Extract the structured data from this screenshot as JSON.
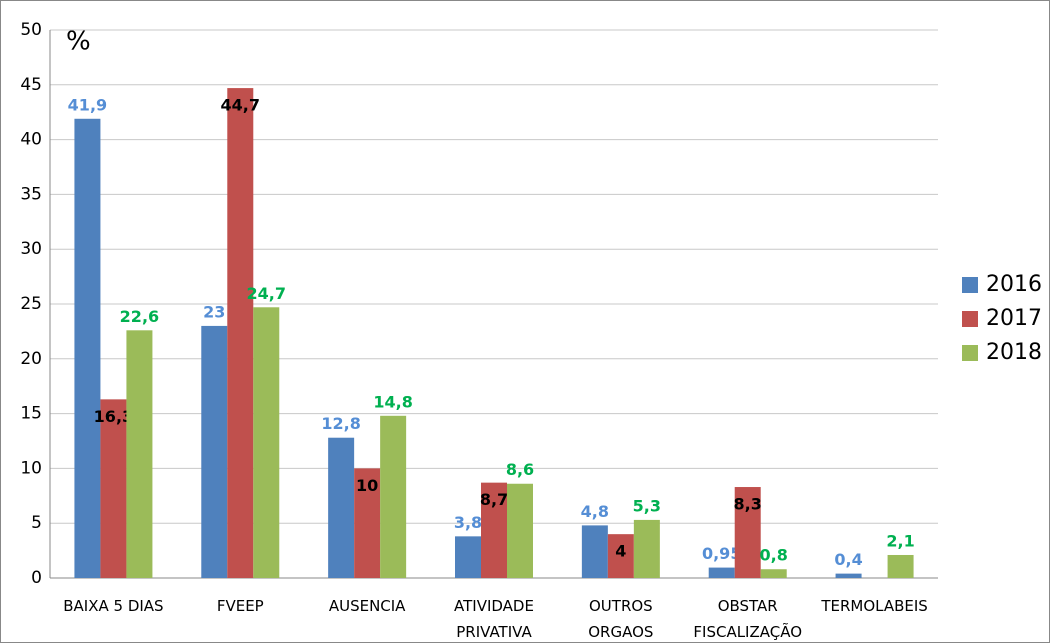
{
  "chart_data": {
    "type": "bar",
    "y_label": "%",
    "categories": [
      "BAIXA 5 DIAS",
      "FVEEP",
      "AUSENCIA",
      "ATIVIDADE PRIVATIVA",
      "OUTROS ORGAOS",
      "OBSTAR FISCALIZAÇÃO",
      "TERMOLABEIS"
    ],
    "series": [
      {
        "name": "2016",
        "color": "#4f81bd",
        "label_color": "#558ed5",
        "values": [
          41.9,
          23,
          12.8,
          3.8,
          4.8,
          0.95,
          0.4
        ],
        "value_labels": [
          "41,9",
          "23",
          "12,8",
          "3,8",
          "4,8",
          "0,95",
          "0,4"
        ]
      },
      {
        "name": "2017",
        "color": "#c0504d",
        "label_color": "#000000",
        "values": [
          16.3,
          44.7,
          10,
          8.7,
          4,
          8.3,
          null
        ],
        "value_labels": [
          "16,3",
          "44,7",
          "10",
          "8,7",
          "4",
          "8,3",
          null
        ]
      },
      {
        "name": "2018",
        "color": "#9bbb59",
        "label_color": "#00b050",
        "values": [
          22.6,
          24.7,
          14.8,
          8.6,
          5.3,
          0.8,
          2.1
        ],
        "value_labels": [
          "22,6",
          "24,7",
          "14,8",
          "8,6",
          "5,3",
          "0,8",
          "2,1"
        ]
      }
    ],
    "ylim": [
      0,
      50
    ],
    "yticks": [
      0,
      5,
      10,
      15,
      20,
      25,
      30,
      35,
      40,
      45,
      50
    ],
    "grid": true,
    "legend": "right"
  }
}
